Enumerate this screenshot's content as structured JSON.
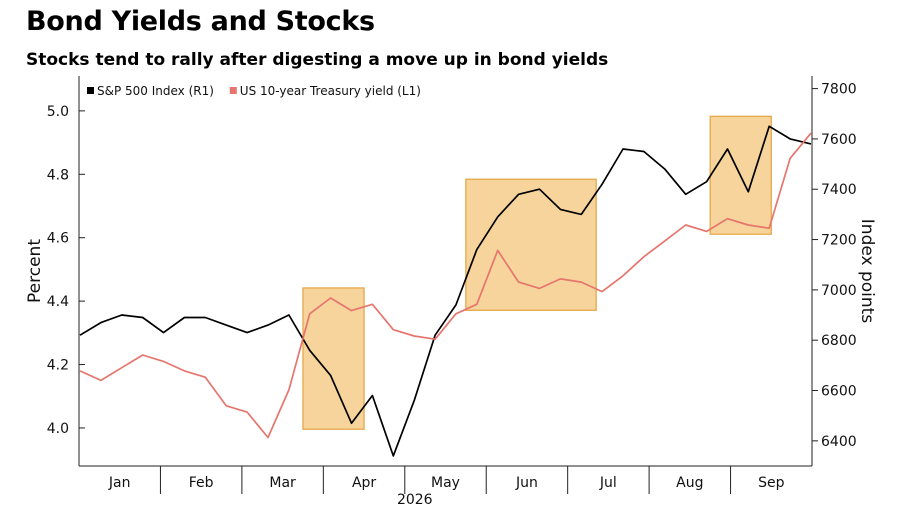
{
  "header": {
    "title": "Bond Yields and Stocks",
    "subtitle": "Stocks tend to rally after digesting a move up in bond yields"
  },
  "chart_data": {
    "type": "line",
    "title": "Bond Yields and Stocks",
    "subtitle": "Stocks tend to rally after digesting a move up in bond yields",
    "xlabel": "",
    "year_label": "2026",
    "x_ticks": [
      "Jan",
      "Feb",
      "Mar",
      "Apr",
      "May",
      "Jun",
      "Jul",
      "Aug",
      "Sep"
    ],
    "y_left": {
      "label": "Percent",
      "ticks": [
        "4.0",
        "4.2",
        "4.4",
        "4.6",
        "4.8",
        "5.0"
      ],
      "range": [
        3.88,
        5.11
      ]
    },
    "y_right": {
      "label": "Index points",
      "ticks": [
        "6400",
        "6600",
        "6800",
        "7000",
        "7200",
        "7400",
        "7600",
        "7800"
      ],
      "range": [
        6300,
        7850
      ]
    },
    "legend_position": "top-left",
    "series": [
      {
        "name": "S&P 500 Index (R1)",
        "axis": "right",
        "color": "#000000",
        "x": [
          0,
          1,
          2,
          3,
          4,
          5,
          6,
          7,
          8,
          9,
          10,
          11,
          12,
          13,
          14,
          15,
          16,
          17,
          18,
          19,
          20,
          21,
          22,
          23,
          24,
          25,
          26,
          27,
          28,
          29,
          30,
          31,
          32,
          33,
          34,
          35
        ],
        "values": [
          6820,
          6870,
          6900,
          6890,
          6830,
          6890,
          6890,
          6860,
          6830,
          6860,
          6900,
          6760,
          6660,
          6470,
          6580,
          6340,
          6560,
          6820,
          6940,
          7160,
          7290,
          7380,
          7400,
          7320,
          7300,
          7420,
          7560,
          7550,
          7480,
          7380,
          7430,
          7560,
          7390,
          7650,
          7600,
          7580
        ]
      },
      {
        "name": "US 10-year Treasury yield (L1)",
        "axis": "left",
        "color": "#e6766d",
        "x": [
          0,
          1,
          2,
          3,
          4,
          5,
          6,
          7,
          8,
          9,
          10,
          11,
          12,
          13,
          14,
          15,
          16,
          17,
          18,
          19,
          20,
          21,
          22,
          23,
          24,
          25,
          26,
          27,
          28,
          29,
          30,
          31,
          32,
          33,
          34,
          35
        ],
        "values": [
          4.18,
          4.15,
          4.19,
          4.23,
          4.21,
          4.18,
          4.16,
          4.07,
          4.05,
          3.97,
          4.12,
          4.36,
          4.41,
          4.37,
          4.39,
          4.31,
          4.29,
          4.28,
          4.36,
          4.39,
          4.56,
          4.46,
          4.44,
          4.47,
          4.46,
          4.43,
          4.48,
          4.54,
          4.59,
          4.64,
          4.62,
          4.66,
          4.64,
          4.63,
          4.85,
          4.93
        ]
      }
    ],
    "highlight_periods": [
      {
        "from": "Mar",
        "to": "Apr"
      },
      {
        "from": "May",
        "to": "Jul"
      },
      {
        "from": "Aug",
        "to": "Sep"
      }
    ]
  }
}
